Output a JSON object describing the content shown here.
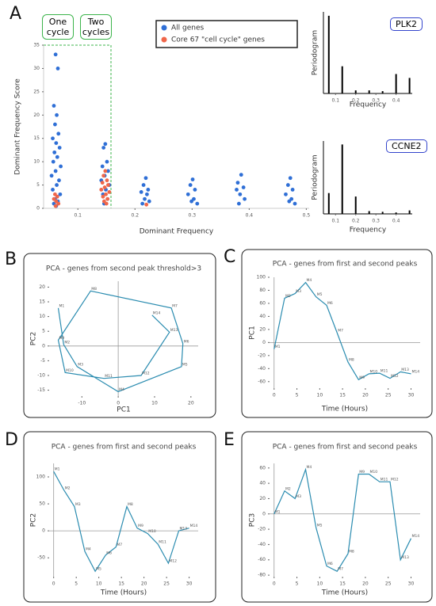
{
  "chart_data": [
    {
      "type": "scatter",
      "panel": "A",
      "xlabel": "Dominant Frequency",
      "ylabel": "Dominant Frequency Score",
      "annotations": [
        "One cycle",
        "Two cycles"
      ],
      "xlim": [
        0.04,
        0.505
      ],
      "ylim": [
        0,
        35
      ],
      "xticks": [
        0.1,
        0.2,
        0.3,
        0.4,
        0.5
      ],
      "yticks": [
        0,
        5,
        10,
        15,
        20,
        25,
        30,
        35
      ],
      "series": [
        {
          "name": "All genes",
          "color": "#2f6fd6",
          "x": [
            0.061,
            0.065,
            0.058,
            0.063,
            0.06,
            0.066,
            0.056,
            0.062,
            0.068,
            0.059,
            0.064,
            0.057,
            0.07,
            0.061,
            0.054,
            0.067,
            0.063,
            0.056,
            0.069,
            0.06,
            0.065,
            0.058,
            0.062,
            0.148,
            0.145,
            0.151,
            0.143,
            0.153,
            0.147,
            0.141,
            0.155,
            0.149,
            0.144,
            0.152,
            0.146,
            0.219,
            0.215,
            0.223,
            0.211,
            0.221,
            0.217,
            0.225,
            0.213,
            0.301,
            0.297,
            0.305,
            0.293,
            0.303,
            0.299,
            0.309,
            0.386,
            0.38,
            0.39,
            0.378,
            0.384,
            0.392,
            0.382,
            0.472,
            0.468,
            0.476,
            0.464,
            0.474,
            0.47,
            0.48
          ],
          "values": [
            33,
            30,
            22,
            20,
            18,
            16,
            15,
            14,
            13,
            12,
            11,
            10,
            9,
            8,
            7,
            6,
            5,
            4,
            3,
            2,
            1.5,
            1,
            0.5,
            13.8,
            13,
            10,
            9,
            8,
            7,
            6,
            5,
            4,
            3,
            2,
            1,
            6.5,
            5,
            4,
            3.5,
            3,
            2,
            1.5,
            1,
            6.2,
            5,
            4,
            3,
            2,
            1.5,
            1,
            7.2,
            5.5,
            4.5,
            4,
            3,
            2,
            1,
            6.5,
            5,
            4,
            3,
            2,
            1.5,
            1
          ]
        },
        {
          "name": "Core 67 \"cell cycle\" genes",
          "color": "#f0664a",
          "x": [
            0.06,
            0.064,
            0.058,
            0.062,
            0.066,
            0.061,
            0.148,
            0.145,
            0.151,
            0.143,
            0.153,
            0.147,
            0.141,
            0.155,
            0.149,
            0.144,
            0.152,
            0.146,
            0.15,
            0.22
          ],
          "values": [
            3,
            2.5,
            2,
            1.5,
            1,
            0.5,
            8,
            7,
            6,
            5.5,
            5,
            4.5,
            4,
            3.5,
            3,
            2.5,
            2,
            1.5,
            1,
            0.8
          ]
        }
      ]
    },
    {
      "type": "bar",
      "title": "PLK2",
      "xlabel": "Frequency",
      "ylabel": "Periodogram",
      "color": "#000000",
      "x": [
        0.0667,
        0.1333,
        0.2,
        0.2667,
        0.3333,
        0.4,
        0.4667
      ],
      "values": [
        1.0,
        0.35,
        0.04,
        0.04,
        0.03,
        0.25,
        0.2
      ],
      "xlim": [
        0.04,
        0.48
      ],
      "ylim": [
        0,
        1.05
      ],
      "xticks": [
        0.1,
        0.2,
        0.3,
        0.4
      ]
    },
    {
      "type": "bar",
      "title": "CCNE2",
      "xlabel": "Frequency",
      "ylabel": "Periodogram",
      "color": "#000000",
      "x": [
        0.0667,
        0.1333,
        0.2,
        0.2667,
        0.3333,
        0.4,
        0.4667
      ],
      "values": [
        0.3,
        1.0,
        0.25,
        0.04,
        0.03,
        0.02,
        0.05
      ],
      "xlim": [
        0.04,
        0.48
      ],
      "ylim": [
        0,
        1.05
      ],
      "xticks": [
        0.1,
        0.2,
        0.3,
        0.4
      ]
    },
    {
      "type": "line",
      "panel": "B",
      "title": "PCA - genes from second peak threshold>3",
      "xlabel": "PC1",
      "ylabel": "PC2",
      "color": "#2b8cb0",
      "x": [
        -16.5,
        -15,
        -11.3,
        0,
        17.4,
        17.8,
        14.6,
        -7.6,
        -16.5,
        -14.6,
        -3.9,
        6.3,
        14.1,
        9.3
      ],
      "values": [
        12.9,
        0.5,
        -7,
        -15.5,
        -7,
        0.8,
        12.9,
        18.7,
        2,
        -9,
        -11,
        -10,
        4.7,
        10.5
      ],
      "point_labels": [
        "M1",
        "M2",
        "M3",
        "M4",
        "M5",
        "M6",
        "M7",
        "M8",
        "M9",
        "M10",
        "M11",
        "M12",
        "M13",
        "M14"
      ],
      "xlim": [
        -19,
        22
      ],
      "ylim": [
        -17,
        22
      ],
      "xticks": [
        -10,
        0,
        10,
        20
      ],
      "yticks": [
        -15,
        -10,
        -5,
        0,
        5,
        10,
        15,
        20
      ]
    },
    {
      "type": "line",
      "panel": "C",
      "title": "PCA - genes from first and second peaks",
      "xlabel": "Time (Hours)",
      "ylabel": "PC1",
      "color": "#2b8cb0",
      "x": [
        0,
        2.3,
        4.6,
        6.9,
        9.2,
        11.5,
        13.8,
        16.2,
        18.5,
        20.8,
        23.1,
        25.4,
        27.7,
        30
      ],
      "values": [
        -10,
        68,
        75,
        92,
        70,
        57,
        15,
        -30,
        -57,
        -48,
        -47,
        -55,
        -45,
        -48
      ],
      "point_labels": [
        "M1",
        "M2",
        "M3",
        "M4",
        "M5",
        "M6",
        "M7",
        "M8",
        "M9",
        "M10",
        "M11",
        "M12",
        "M13",
        "M14"
      ],
      "xlim": [
        -1,
        32
      ],
      "ylim": [
        -70,
        100
      ],
      "xticks": [
        0,
        5,
        10,
        15,
        20,
        25,
        30
      ],
      "yticks": [
        -60,
        -40,
        -20,
        0,
        20,
        40,
        60,
        80,
        100
      ]
    },
    {
      "type": "line",
      "panel": "D",
      "title": "PCA - genes from first and second peaks",
      "xlabel": "Time (Hours)",
      "ylabel": "PC2",
      "color": "#2b8cb0",
      "x": [
        0,
        2.3,
        4.6,
        6.9,
        9.2,
        11.5,
        13.8,
        16.2,
        18.5,
        20.8,
        23.1,
        25.4,
        27.7,
        30
      ],
      "values": [
        110,
        75,
        45,
        -38,
        -75,
        -45,
        -30,
        45,
        5,
        -5,
        -25,
        -60,
        0,
        5
      ],
      "point_labels": [
        "M1",
        "M2",
        "M3",
        "M4",
        "M5",
        "M6",
        "M7",
        "M8",
        "M9",
        "M10",
        "M11",
        "M12",
        "M13",
        "M14"
      ],
      "xlim": [
        -1,
        32
      ],
      "ylim": [
        -85,
        125
      ],
      "xticks": [
        0,
        5,
        10,
        15,
        20,
        25,
        30
      ],
      "yticks": [
        -50,
        0,
        50,
        100
      ]
    },
    {
      "type": "line",
      "panel": "E",
      "title": "PCA - genes from first and second peaks",
      "xlabel": "Time (Hours)",
      "ylabel": "PC3",
      "color": "#2b8cb0",
      "x": [
        0,
        2.3,
        4.6,
        6.9,
        9.2,
        11.5,
        13.8,
        16.2,
        18.5,
        20.8,
        23.1,
        25.4,
        27.7,
        30
      ],
      "values": [
        0,
        30,
        20,
        58,
        -18,
        -68,
        -75,
        -52,
        52,
        52,
        42,
        42,
        -60,
        -32
      ],
      "point_labels": [
        "M1",
        "M2",
        "M3",
        "M4",
        "M5",
        "M6",
        "M7",
        "M8",
        "M9",
        "M10",
        "M11",
        "M12",
        "M13",
        "M14"
      ],
      "xlim": [
        -1,
        32
      ],
      "ylim": [
        -82,
        66
      ],
      "xticks": [
        0,
        5,
        10,
        15,
        20,
        25,
        30
      ],
      "yticks": [
        -80,
        -60,
        -40,
        -20,
        0,
        20,
        40,
        60
      ]
    }
  ]
}
